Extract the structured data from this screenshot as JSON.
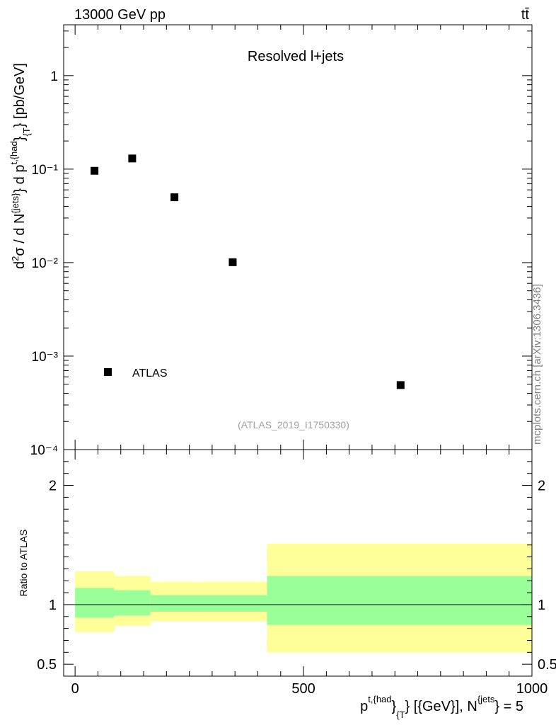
{
  "header": {
    "energy_label": "13000 GeV pp",
    "process_label": "tt̄"
  },
  "watermark": "mcplots.cern.ch [arXiv:1306.3436]",
  "chart_data": [
    {
      "type": "scatter",
      "panel": "main",
      "title": "Resolved l+jets",
      "analysis_id": "(ATLAS_2019_I1750330)",
      "ylabel": "d²σ / d N^{jets} d p^{t,{had}}_{T} [pb/GeV]",
      "yscale": "log",
      "ylim": [
        0.0001,
        3.5
      ],
      "xlim": [
        -25,
        1000
      ],
      "y_tick_labels": [
        "10⁻⁴",
        "10⁻³",
        "10⁻²",
        "10⁻¹",
        "1"
      ],
      "legend": {
        "position": "bottom-left",
        "entries": [
          "ATLAS"
        ]
      },
      "series": [
        {
          "name": "ATLAS",
          "marker": "square",
          "x": [
            42.5,
            125,
            217.5,
            345,
            712.5
          ],
          "y": [
            0.096,
            0.13,
            0.05,
            0.0101,
            0.00049
          ]
        }
      ]
    },
    {
      "type": "area",
      "panel": "ratio",
      "ylabel": "Ratio to ATLAS",
      "xlabel": "p^{t,{had}}_{T} [{GeV}], N^{jets} = 5",
      "xlim": [
        -25,
        1000
      ],
      "ylim": [
        0.4,
        2.3
      ],
      "x_tick_labels": [
        "0",
        "500",
        "1000"
      ],
      "y_tick_labels": [
        "0.5",
        "1",
        "2"
      ],
      "reference_line": 1.0,
      "bins": [
        {
          "x_low": 0,
          "x_high": 85,
          "stat_low": 0.89,
          "stat_high": 1.14,
          "total_low": 0.77,
          "total_high": 1.28
        },
        {
          "x_low": 85,
          "x_high": 165,
          "stat_low": 0.91,
          "stat_high": 1.12,
          "total_low": 0.82,
          "total_high": 1.24
        },
        {
          "x_low": 165,
          "x_high": 270,
          "stat_low": 0.94,
          "stat_high": 1.08,
          "total_low": 0.86,
          "total_high": 1.19
        },
        {
          "x_low": 270,
          "x_high": 420,
          "stat_low": 0.94,
          "stat_high": 1.08,
          "total_low": 0.86,
          "total_high": 1.19
        },
        {
          "x_low": 420,
          "x_high": 1000,
          "stat_low": 0.83,
          "stat_high": 1.24,
          "total_low": 0.6,
          "total_high": 1.51
        }
      ],
      "band_colors": {
        "stat": "#99ff99",
        "total": "#ffff99"
      }
    }
  ]
}
